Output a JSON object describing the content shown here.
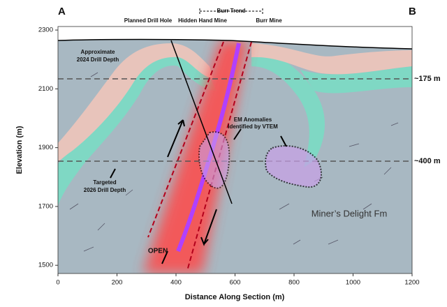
{
  "chart_data": {
    "type": "cross-section",
    "title_left": "A",
    "title_right": "B",
    "x_label": "Distance Along Section (m)",
    "y_label": "Elevation (m)",
    "xlim": [
      0,
      1200
    ],
    "ylim": [
      1472,
      2312
    ],
    "xticks": [
      0,
      200,
      400,
      600,
      800,
      1000,
      1200
    ],
    "yticks": [
      1500,
      1700,
      1900,
      2100,
      2300
    ],
    "annotations": {
      "planned_drill_hole": "Planned Drill Hole",
      "hidden_hand_mine": "Hidden Hand Mine",
      "burr_mine": "Burr Mine",
      "burr_trend": "Burr Trend",
      "drill_2024": [
        "Approximate",
        "2024 Drill Depth"
      ],
      "depth_175": "~175 m",
      "em": [
        "EM Anomalies",
        "Identified by VTEM"
      ],
      "depth_400": "~400 m",
      "drill_2026": [
        "Targeted",
        "2026 Drill Depth"
      ],
      "formation": "Miner’s Delight Fm",
      "open": "OPEN"
    }
  }
}
